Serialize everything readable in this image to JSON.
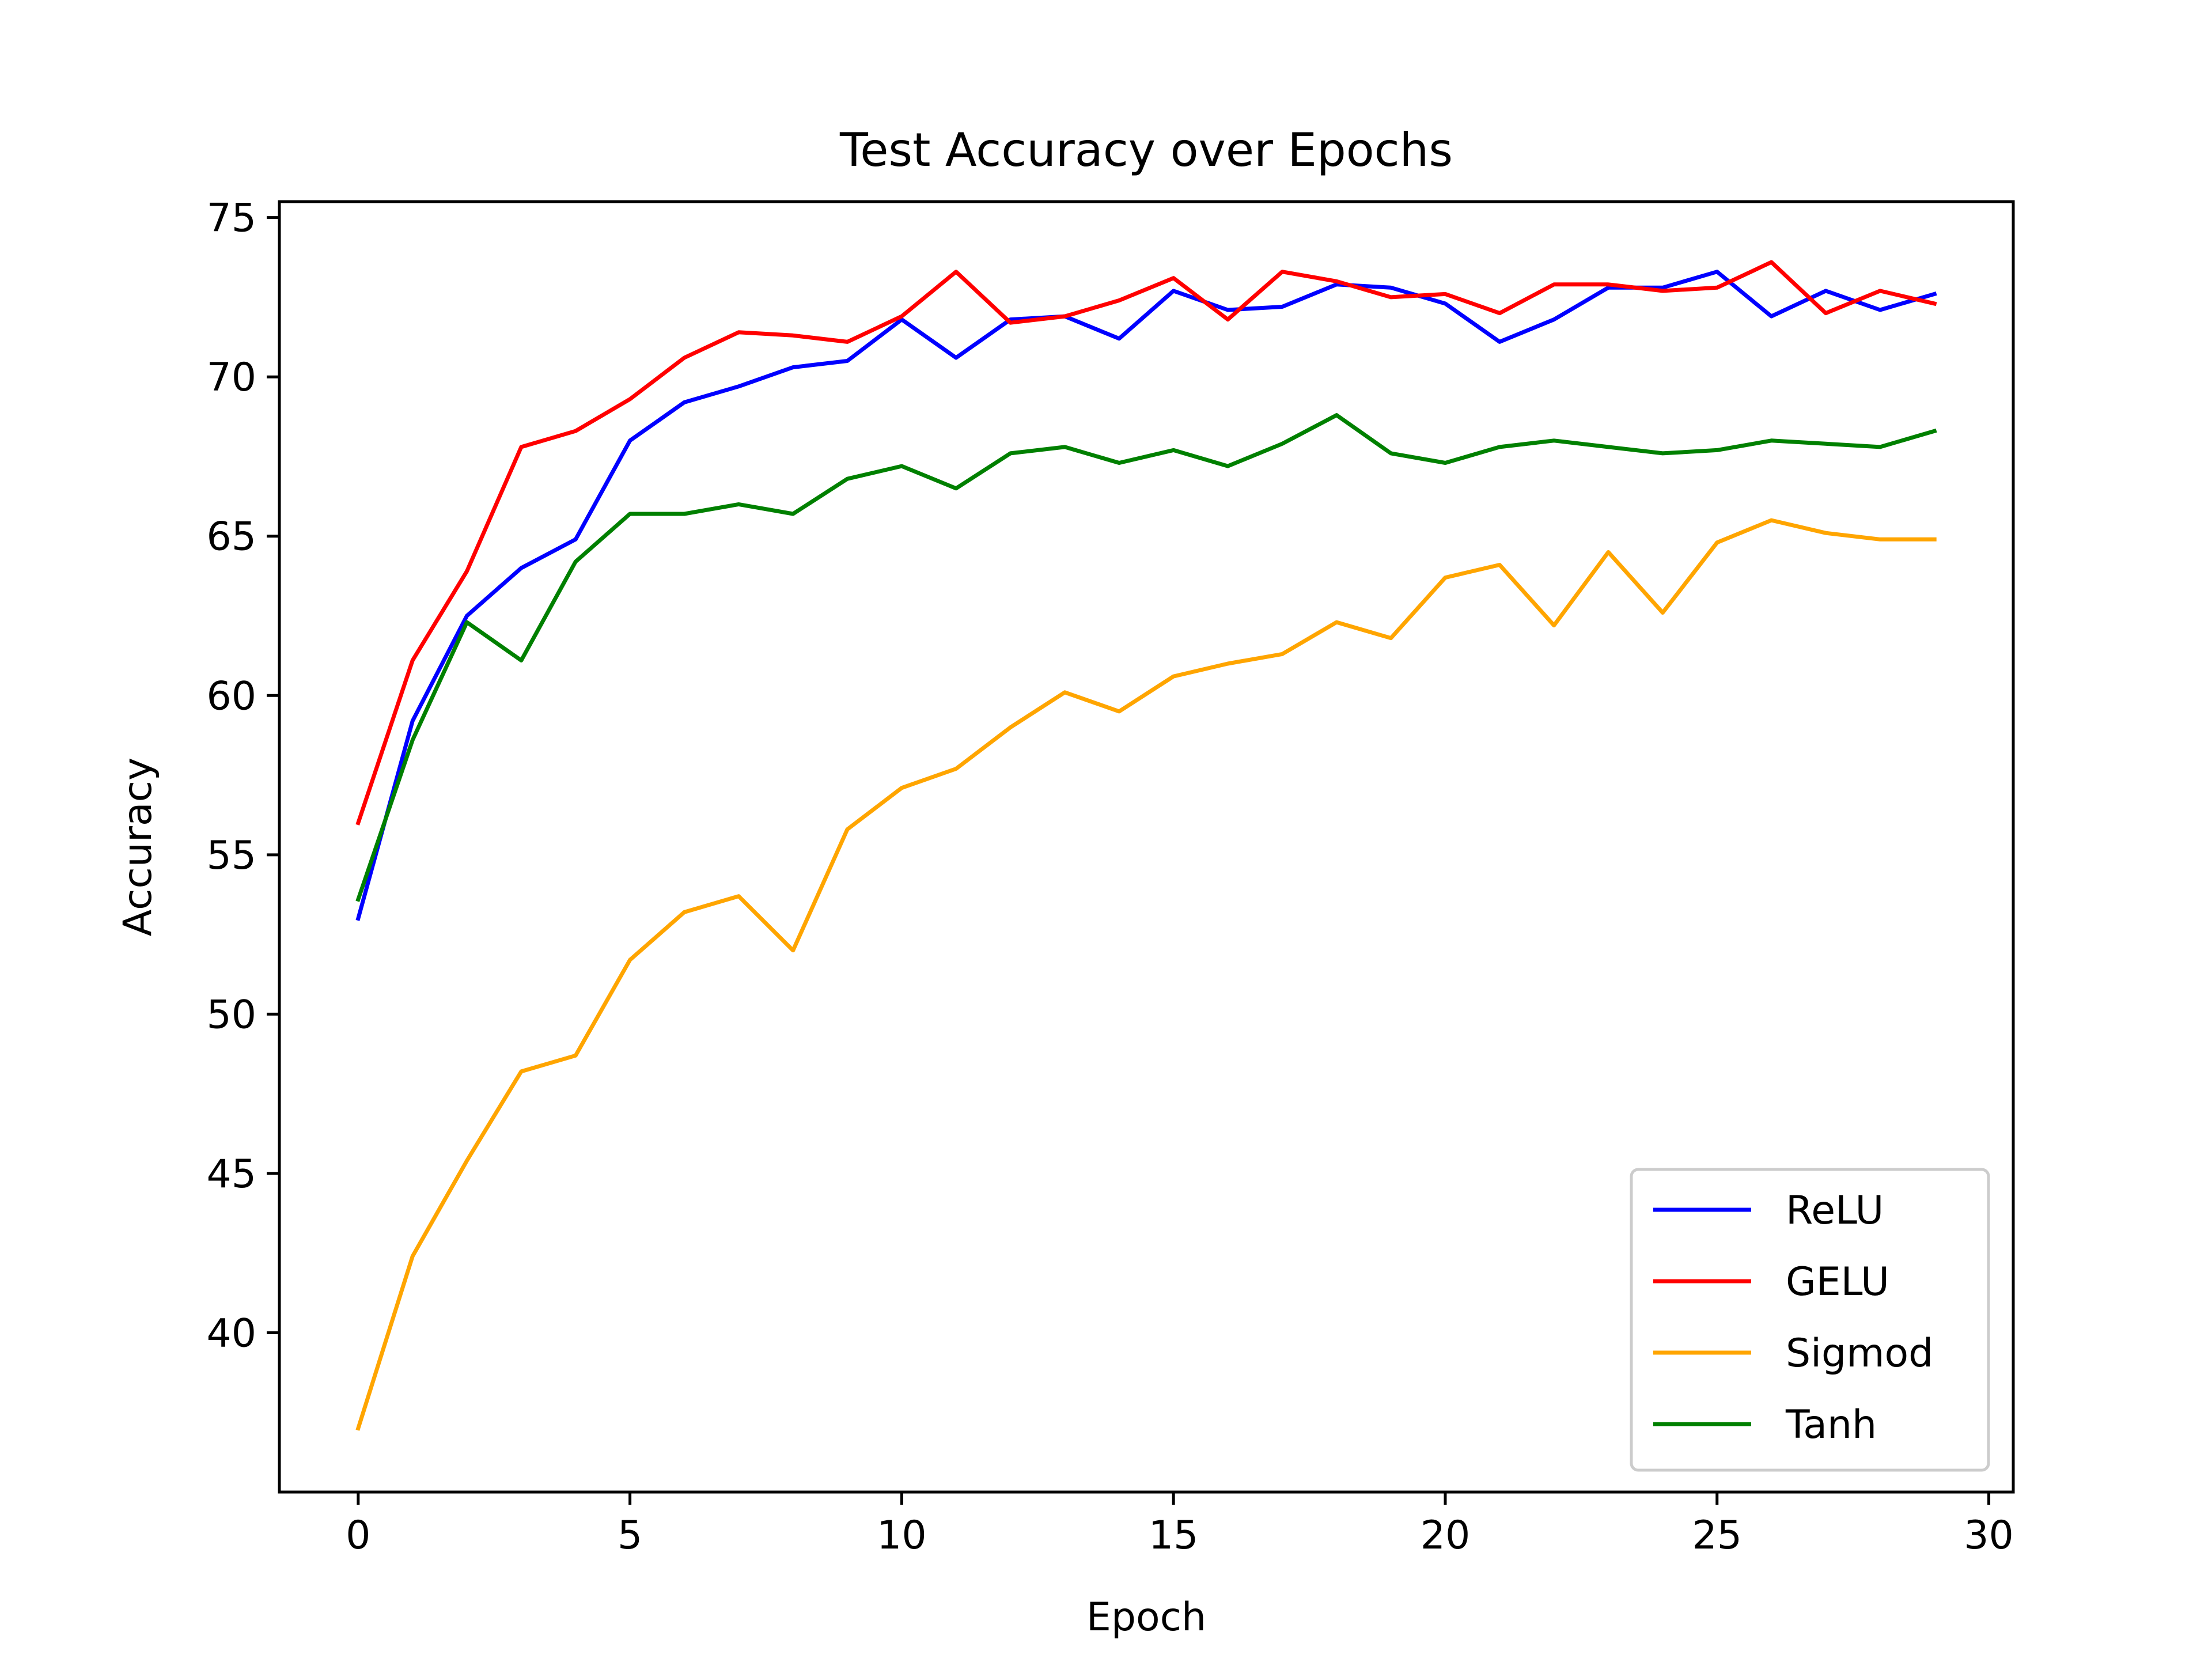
{
  "chart_data": {
    "type": "line",
    "title": "Test Accuracy over Epochs",
    "xlabel": "Epoch",
    "ylabel": "Accuracy",
    "xlim": [
      -1.45,
      30.45
    ],
    "ylim": [
      35.0,
      75.5
    ],
    "xticks": [
      0,
      5,
      10,
      15,
      20,
      25,
      30
    ],
    "yticks": [
      40,
      45,
      50,
      55,
      60,
      65,
      70,
      75
    ],
    "grid": false,
    "legend_position": "lower-right",
    "x": [
      0,
      1,
      2,
      3,
      4,
      5,
      6,
      7,
      8,
      9,
      10,
      11,
      12,
      13,
      14,
      15,
      16,
      17,
      18,
      19,
      20,
      21,
      22,
      23,
      24,
      25,
      26,
      27,
      28,
      29
    ],
    "series": [
      {
        "name": "ReLU",
        "color": "#0000ff",
        "values": [
          53.0,
          59.2,
          62.5,
          64.0,
          64.9,
          68.0,
          69.2,
          69.7,
          70.3,
          70.5,
          71.8,
          70.6,
          71.8,
          71.9,
          71.2,
          72.7,
          72.1,
          72.2,
          72.9,
          72.8,
          72.3,
          71.1,
          71.8,
          72.8,
          72.8,
          73.3,
          71.9,
          72.7,
          72.1,
          72.6
        ]
      },
      {
        "name": "GELU",
        "color": "#ff0000",
        "values": [
          56.0,
          61.1,
          63.9,
          67.8,
          68.3,
          69.3,
          70.6,
          71.4,
          71.3,
          71.1,
          71.9,
          73.3,
          71.7,
          71.9,
          72.4,
          73.1,
          71.8,
          73.3,
          73.0,
          72.5,
          72.6,
          72.0,
          72.9,
          72.9,
          72.7,
          72.8,
          73.6,
          72.0,
          72.7,
          72.3
        ]
      },
      {
        "name": "Sigmod",
        "color": "#ffa500",
        "values": [
          37.0,
          42.4,
          45.4,
          48.2,
          48.7,
          51.7,
          53.2,
          53.7,
          52.0,
          55.8,
          57.1,
          57.7,
          59.0,
          60.1,
          59.5,
          60.6,
          61.0,
          61.3,
          62.3,
          61.8,
          63.7,
          64.1,
          62.2,
          64.5,
          62.6,
          64.8,
          65.5,
          65.1,
          64.9,
          64.9
        ]
      },
      {
        "name": "Tanh",
        "color": "#008000",
        "values": [
          53.6,
          58.6,
          62.3,
          61.1,
          64.2,
          65.7,
          65.7,
          66.0,
          65.7,
          66.8,
          67.2,
          66.5,
          67.6,
          67.8,
          67.3,
          67.7,
          67.2,
          67.9,
          68.8,
          67.6,
          67.3,
          67.8,
          68.0,
          67.8,
          67.6,
          67.7,
          68.0,
          67.9,
          67.8,
          68.3
        ]
      }
    ]
  }
}
